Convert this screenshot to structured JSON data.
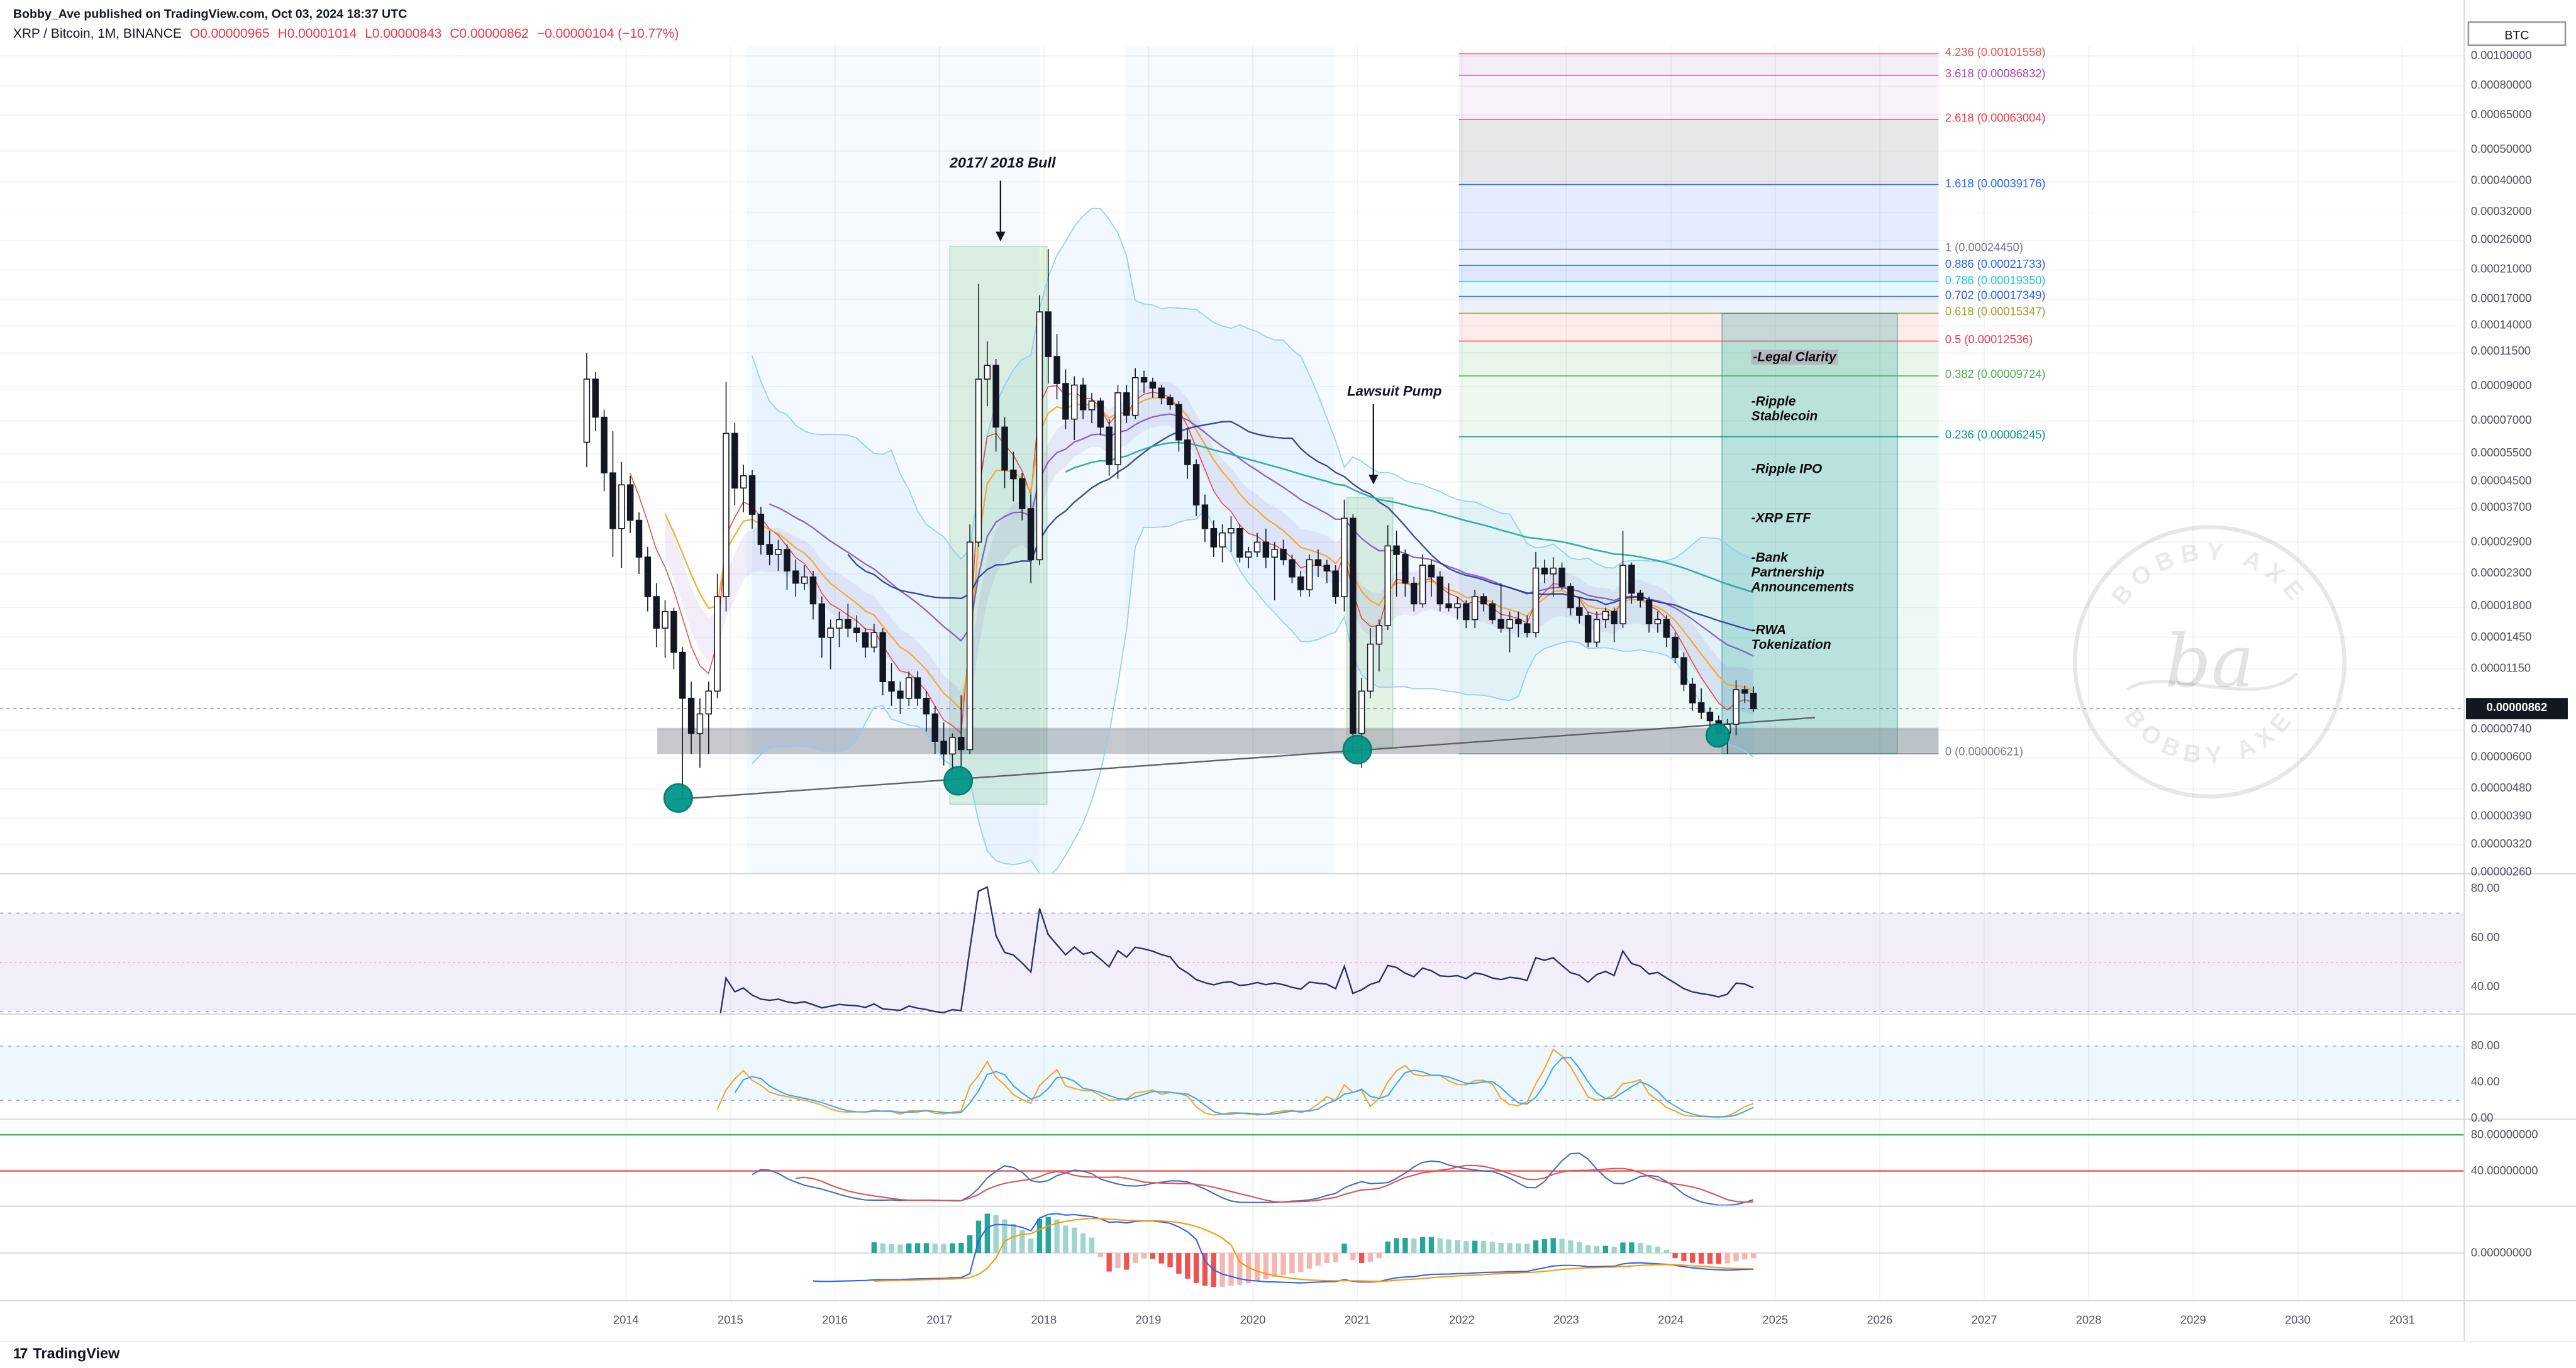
{
  "header": {
    "published": "Bobby_Ave published on TradingView.com, Oct 03, 2024 18:37 UTC",
    "symbol": "XRP / Bitcoin, 1M, BINANCE",
    "o": "O0.00000965",
    "h": "H0.00001014",
    "l": "L0.00000843",
    "c": "C0.00000862",
    "change": "−0.00000104 (−10.77%)"
  },
  "price_axis": {
    "currency": "BTC",
    "current": "0.00000862",
    "labels": [
      "0.00100000",
      "0.00080000",
      "0.00065000",
      "0.00050000",
      "0.00040000",
      "0.00032000",
      "0.00026000",
      "0.00021000",
      "0.00017000",
      "0.00014000",
      "0.00011500",
      "0.00009000",
      "0.00007000",
      "0.00005500",
      "0.00004500",
      "0.00003700",
      "0.00002900",
      "0.00002300",
      "0.00001800",
      "0.00001450",
      "0.00001150",
      "0.00000740",
      "0.00000600",
      "0.00000480",
      "0.00000390",
      "0.00000320",
      "0.00000260"
    ]
  },
  "time_axis": {
    "years": [
      2014,
      2015,
      2016,
      2017,
      2018,
      2019,
      2020,
      2021,
      2022,
      2023,
      2024,
      2025,
      2026,
      2027,
      2028,
      2029,
      2030,
      2031
    ]
  },
  "annotations": {
    "bull": "2017/ 2018 Bull",
    "lawsuit": "Lawsuit Pump"
  },
  "watermark": {
    "arc_top": "BOBBY AXE",
    "arc_bottom": "BOBBY AXE",
    "monogram": "ba"
  },
  "footer": {
    "logo": "17",
    "brand": "TradingView"
  },
  "panels": {
    "rsi": {
      "labels": [
        "80.00",
        "60.00",
        "40.00"
      ]
    },
    "stoch": {
      "labels": [
        "80.00",
        "40.00",
        "0.00"
      ]
    },
    "osc": {
      "labels": [
        "80.00000000",
        "40.00000000"
      ]
    },
    "macd": {
      "labels": [
        "0.00000000"
      ]
    }
  },
  "chart_data": {
    "type": "candlestick",
    "symbol": "XRP/BTC",
    "timeframe": "1M",
    "scale": "log",
    "price_unit": "1e-8 BTC (satoshis)",
    "ohlc_current": {
      "o": 9.65e-06,
      "h": 1.014e-05,
      "l": 8.43e-06,
      "c": 8.62e-06,
      "change_pct": -10.77
    },
    "candles": [
      [
        "2013-08",
        6000,
        11500,
        5000,
        9500
      ],
      [
        "2013-09",
        9500,
        10000,
        6500,
        7200
      ],
      [
        "2013-10",
        7200,
        7600,
        4200,
        4800
      ],
      [
        "2013-11",
        4800,
        6500,
        2600,
        3200
      ],
      [
        "2013-12",
        3200,
        5200,
        2400,
        4400
      ],
      [
        "2014-01",
        4400,
        4700,
        3100,
        3400
      ],
      [
        "2014-02",
        3400,
        3600,
        2300,
        2600
      ],
      [
        "2014-03",
        2600,
        2800,
        1750,
        1950
      ],
      [
        "2014-04",
        1950,
        2150,
        1350,
        1550
      ],
      [
        "2014-05",
        1550,
        1900,
        1250,
        1750
      ],
      [
        "2014-06",
        1750,
        1800,
        1150,
        1300
      ],
      [
        "2014-07",
        1300,
        1350,
        450,
        930
      ],
      [
        "2014-08",
        930,
        1050,
        620,
        720
      ],
      [
        "2014-09",
        720,
        930,
        560,
        830
      ],
      [
        "2014-10",
        830,
        1050,
        620,
        980
      ],
      [
        "2014-11",
        980,
        2300,
        930,
        1950
      ],
      [
        "2014-12",
        1950,
        9300,
        1750,
        6400
      ],
      [
        "2015-01",
        6400,
        6900,
        3800,
        4300
      ],
      [
        "2015-02",
        4300,
        5100,
        3600,
        4700
      ],
      [
        "2015-03",
        4700,
        4900,
        3200,
        3550
      ],
      [
        "2015-04",
        3550,
        3750,
        2650,
        2850
      ],
      [
        "2015-05",
        2850,
        3150,
        2450,
        2650
      ],
      [
        "2015-06",
        2650,
        2950,
        2350,
        2750
      ],
      [
        "2015-07",
        2750,
        2850,
        2050,
        2350
      ],
      [
        "2015-08",
        2350,
        2550,
        1950,
        2150
      ],
      [
        "2015-09",
        2150,
        2450,
        2050,
        2250
      ],
      [
        "2015-10",
        2250,
        2350,
        1650,
        1850
      ],
      [
        "2015-11",
        1850,
        1950,
        1250,
        1450
      ],
      [
        "2015-12",
        1450,
        1650,
        1150,
        1550
      ],
      [
        "2016-01",
        1550,
        1750,
        1350,
        1650
      ],
      [
        "2016-02",
        1650,
        1850,
        1450,
        1550
      ],
      [
        "2016-03",
        1550,
        1700,
        1400,
        1500
      ],
      [
        "2016-04",
        1500,
        1550,
        1250,
        1350
      ],
      [
        "2016-05",
        1350,
        1600,
        1300,
        1500
      ],
      [
        "2016-06",
        1500,
        1550,
        950,
        1050
      ],
      [
        "2016-07",
        1050,
        1200,
        880,
        980
      ],
      [
        "2016-08",
        980,
        1050,
        830,
        930
      ],
      [
        "2016-09",
        930,
        1130,
        880,
        1080
      ],
      [
        "2016-10",
        1080,
        1130,
        880,
        930
      ],
      [
        "2016-11",
        930,
        980,
        730,
        830
      ],
      [
        "2016-12",
        830,
        880,
        620,
        680
      ],
      [
        "2017-01",
        680,
        780,
        570,
        620
      ],
      [
        "2017-02",
        620,
        720,
        540,
        700
      ],
      [
        "2017-03",
        700,
        950,
        530,
        640
      ],
      [
        "2017-04",
        640,
        3300,
        620,
        2900
      ],
      [
        "2017-05",
        2900,
        19000,
        2800,
        9500
      ],
      [
        "2017-06",
        9500,
        12500,
        7800,
        10500
      ],
      [
        "2017-07",
        10500,
        11000,
        5600,
        6700
      ],
      [
        "2017-08",
        6700,
        7200,
        4300,
        4900
      ],
      [
        "2017-09",
        4900,
        5600,
        3900,
        4600
      ],
      [
        "2017-10",
        4600,
        4800,
        3400,
        3700
      ],
      [
        "2017-11",
        3700,
        4100,
        2150,
        2550
      ],
      [
        "2017-12",
        2550,
        17500,
        2450,
        15500
      ],
      [
        "2018-01",
        15500,
        24500,
        9200,
        11200
      ],
      [
        "2018-02",
        11200,
        13200,
        8200,
        9200
      ],
      [
        "2018-03",
        9200,
        10200,
        6600,
        7100
      ],
      [
        "2018-04",
        7100,
        9700,
        6100,
        9100
      ],
      [
        "2018-05",
        9100,
        9600,
        7100,
        7600
      ],
      [
        "2018-06",
        7600,
        8600,
        6900,
        8100
      ],
      [
        "2018-07",
        8100,
        8300,
        6300,
        6700
      ],
      [
        "2018-08",
        6700,
        7100,
        4700,
        5100
      ],
      [
        "2018-09",
        5100,
        9100,
        4600,
        8600
      ],
      [
        "2018-10",
        8600,
        9100,
        6900,
        7300
      ],
      [
        "2018-11",
        7300,
        10300,
        7100,
        9600
      ],
      [
        "2018-12",
        9600,
        10100,
        8600,
        9300
      ],
      [
        "2019-01",
        9300,
        9600,
        8300,
        8900
      ],
      [
        "2019-02",
        8900,
        9100,
        7900,
        8300
      ],
      [
        "2019-03",
        8300,
        8500,
        7600,
        7900
      ],
      [
        "2019-04",
        7900,
        8100,
        5600,
        6100
      ],
      [
        "2019-05",
        6100,
        6600,
        4600,
        5100
      ],
      [
        "2019-06",
        5100,
        5300,
        3500,
        3800
      ],
      [
        "2019-07",
        3800,
        4100,
        2900,
        3200
      ],
      [
        "2019-08",
        3200,
        3400,
        2600,
        2800
      ],
      [
        "2019-09",
        2800,
        3300,
        2500,
        3100
      ],
      [
        "2019-10",
        3100,
        3500,
        2700,
        3200
      ],
      [
        "2019-11",
        3200,
        3300,
        2500,
        2600
      ],
      [
        "2019-12",
        2600,
        2800,
        2400,
        2700
      ],
      [
        "2020-01",
        2700,
        3100,
        2600,
        2900
      ],
      [
        "2020-02",
        2900,
        3200,
        2400,
        2600
      ],
      [
        "2020-03",
        2600,
        2900,
        1900,
        2750
      ],
      [
        "2020-04",
        2750,
        2950,
        2450,
        2550
      ],
      [
        "2020-05",
        2550,
        2650,
        2150,
        2250
      ],
      [
        "2020-06",
        2250,
        2350,
        1950,
        2050
      ],
      [
        "2020-07",
        2050,
        2650,
        1950,
        2550
      ],
      [
        "2020-08",
        2550,
        2750,
        2250,
        2450
      ],
      [
        "2020-09",
        2450,
        2550,
        2150,
        2350
      ],
      [
        "2020-10",
        2350,
        2450,
        1850,
        1950
      ],
      [
        "2020-11",
        1950,
        3950,
        1750,
        3450
      ],
      [
        "2020-12",
        3450,
        3550,
        620,
        720
      ],
      [
        "2021-01",
        720,
        1080,
        560,
        980
      ],
      [
        "2021-02",
        980,
        1550,
        930,
        1380
      ],
      [
        "2021-03",
        1380,
        1650,
        1130,
        1580
      ],
      [
        "2021-04",
        1580,
        3280,
        1530,
        2820
      ],
      [
        "2021-05",
        2820,
        3150,
        1950,
        2650
      ],
      [
        "2021-06",
        2650,
        2750,
        1950,
        2150
      ],
      [
        "2021-07",
        2150,
        2250,
        1750,
        1850
      ],
      [
        "2021-08",
        1850,
        2650,
        1800,
        2450
      ],
      [
        "2021-09",
        2450,
        2550,
        1950,
        2250
      ],
      [
        "2021-10",
        2250,
        2350,
        1750,
        1850
      ],
      [
        "2021-11",
        1850,
        2150,
        1750,
        1800
      ],
      [
        "2021-12",
        1800,
        1950,
        1650,
        1850
      ],
      [
        "2022-01",
        1850,
        1900,
        1550,
        1650
      ],
      [
        "2022-02",
        1650,
        2050,
        1550,
        1950
      ],
      [
        "2022-03",
        1950,
        2000,
        1750,
        1850
      ],
      [
        "2022-04",
        1850,
        1900,
        1600,
        1650
      ],
      [
        "2022-05",
        1650,
        2150,
        1500,
        1550
      ],
      [
        "2022-06",
        1550,
        1750,
        1300,
        1650
      ],
      [
        "2022-07",
        1650,
        1750,
        1450,
        1600
      ],
      [
        "2022-08",
        1600,
        1700,
        1450,
        1500
      ],
      [
        "2022-09",
        1500,
        2700,
        1450,
        2400
      ],
      [
        "2022-10",
        2400,
        2550,
        2150,
        2300
      ],
      [
        "2022-11",
        2300,
        2600,
        1950,
        2400
      ],
      [
        "2022-12",
        2400,
        2500,
        2050,
        2100
      ],
      [
        "2023-01",
        2100,
        2150,
        1700,
        1800
      ],
      [
        "2023-02",
        1800,
        1950,
        1600,
        1700
      ],
      [
        "2023-03",
        1700,
        1750,
        1350,
        1400
      ],
      [
        "2023-04",
        1400,
        1750,
        1350,
        1650
      ],
      [
        "2023-05",
        1650,
        1800,
        1550,
        1750
      ],
      [
        "2023-06",
        1750,
        1800,
        1400,
        1600
      ],
      [
        "2023-07",
        1600,
        3150,
        1550,
        2450
      ],
      [
        "2023-08",
        2450,
        2500,
        1850,
        2000
      ],
      [
        "2023-09",
        2000,
        2050,
        1800,
        1900
      ],
      [
        "2023-10",
        1900,
        1950,
        1500,
        1600
      ],
      [
        "2023-11",
        1600,
        1750,
        1500,
        1650
      ],
      [
        "2023-12",
        1650,
        1700,
        1350,
        1450
      ],
      [
        "2024-01",
        1450,
        1500,
        1200,
        1250
      ],
      [
        "2024-02",
        1250,
        1300,
        980,
        1030
      ],
      [
        "2024-03",
        1030,
        1080,
        850,
        900
      ],
      [
        "2024-04",
        900,
        1000,
        800,
        840
      ],
      [
        "2024-05",
        840,
        870,
        760,
        790
      ],
      [
        "2024-06",
        790,
        820,
        700,
        720
      ],
      [
        "2024-07",
        720,
        800,
        621,
        770
      ],
      [
        "2024-08",
        770,
        1060,
        710,
        990
      ],
      [
        "2024-09",
        990,
        1020,
        900,
        965
      ],
      [
        "2024-10",
        965,
        1014,
        843,
        862
      ]
    ],
    "fib_extension": {
      "levels": [
        {
          "ratio": "4.236",
          "price": 0.00101558,
          "label": "4.236 (0.00101558)",
          "color": "#ef5350",
          "band": "rgba(171,71,188,0.10)"
        },
        {
          "ratio": "3.618",
          "price": 0.00086832,
          "label": "3.618 (0.00086832)",
          "color": "#ab47bc",
          "band": "rgba(171,71,188,0.07)"
        },
        {
          "ratio": "2.618",
          "price": 0.00063004,
          "label": "2.618 (0.00063004)",
          "color": "#f23645",
          "band": "rgba(120,123,134,0.18)"
        },
        {
          "ratio": "1.618",
          "price": 0.00039176,
          "label": "1.618 (0.00039176)",
          "color": "#2962ff",
          "band": "rgba(41,98,255,0.12)"
        },
        {
          "ratio": "1",
          "price": 0.0002445,
          "label": "1 (0.00024450)",
          "color": "#787b86",
          "band": "rgba(41,98,255,0.09)"
        },
        {
          "ratio": "0.886",
          "price": 0.00021733,
          "label": "0.886 (0.00021733)",
          "color": "#2962ff",
          "band": "rgba(41,98,255,0.15)"
        },
        {
          "ratio": "0.786",
          "price": 0.0001935,
          "label": "0.786 (0.00019350)",
          "color": "#26c6da",
          "band": "rgba(38,198,218,0.12)"
        },
        {
          "ratio": "0.702",
          "price": 0.00017349,
          "label": "0.702 (0.00017349)",
          "color": "#2962ff",
          "band": "rgba(41,98,255,0.09)"
        },
        {
          "ratio": "0.618",
          "price": 0.00015347,
          "label": "0.618 (0.00015347)",
          "color": "#9ca32c",
          "band": "rgba(242,54,69,0.10)"
        },
        {
          "ratio": "0.5",
          "price": 0.00012536,
          "label": "0.5 (0.00012536)",
          "color": "#f23645",
          "band": "rgba(76,175,80,0.12)"
        },
        {
          "ratio": "0.382",
          "price": 9.724e-05,
          "label": "0.382 (0.00009724)",
          "color": "#4caf50",
          "band": "rgba(76,175,80,0.09)"
        },
        {
          "ratio": "0.236",
          "price": 6.245e-05,
          "label": "0.236 (0.00006245)",
          "color": "#009688",
          "band": "rgba(0,150,136,0.07)"
        },
        {
          "ratio": "0",
          "price": 6.21e-06,
          "label": "0 (0.00000621)",
          "color": "#787b86",
          "band": null
        }
      ]
    },
    "support_zone": {
      "price_top": 7.5e-06,
      "price_bottom": 6.2e-06,
      "t1": 2014.3,
      "color": "rgba(130,133,144,0.45)"
    },
    "trendline": {
      "t1": 2014.45,
      "p1": 4.45e-06,
      "t2": 2025.38,
      "p2": 8.08e-06,
      "color": "#5d606b"
    },
    "low_markers": {
      "color": "#009688",
      "ring": "#00796b",
      "points": [
        {
          "t": 2014.5,
          "p": 4.5e-06
        },
        {
          "t": 2017.18,
          "p": 5.1e-06
        },
        {
          "t": 2021.0,
          "p": 6.4e-06
        },
        {
          "t": 2024.45,
          "p": 7.1e-06
        }
      ]
    },
    "highlight_zones": [
      {
        "name": "bull-2017-2018",
        "t1": 2017.1,
        "t2": 2018.03,
        "p_top": 0.00025,
        "p_bottom": 4.3e-06,
        "fill": "rgba(76,175,80,0.16)",
        "stroke": "rgba(76,175,80,0.35)"
      },
      {
        "name": "lawsuit-pump",
        "t1": 2020.9,
        "t2": 2021.34,
        "p_top": 4.01e-05,
        "p_bottom": 6.5e-06,
        "fill": "rgba(76,175,80,0.16)",
        "stroke": "rgba(76,175,80,0.35)"
      },
      {
        "name": "projection-box",
        "t1": 2024.49,
        "t2": 2026.17,
        "p_top": 0.00015347,
        "p_bottom": 6.21e-06,
        "fill": "rgba(0,150,136,0.22)",
        "stroke": "rgba(0,121,107,0.45)"
      }
    ],
    "background_zones": [
      {
        "t1": 2015.16,
        "t2": 2017.96,
        "fill": "rgba(33,150,243,0.045)"
      },
      {
        "t1": 2018.78,
        "t2": 2020.78,
        "fill": "rgba(33,150,243,0.045)"
      }
    ],
    "catalysts": [
      {
        "text": "-Legal Clarity",
        "highlight": true
      },
      {
        "text": "-Ripple Stablecoin",
        "highlight": false
      },
      {
        "text": "-Ripple IPO",
        "highlight": false
      },
      {
        "text": "-XRP ETF",
        "highlight": false
      },
      {
        "text": "-Bank Partnership Announcements",
        "highlight": false
      },
      {
        "text": "-RWA Tokenization",
        "highlight": false
      }
    ],
    "indicators_lower_panels": [
      "momentum-oscillator",
      "stochastic",
      "smoothed-oscillator-with-80-40-bands",
      "macd-histogram"
    ]
  }
}
